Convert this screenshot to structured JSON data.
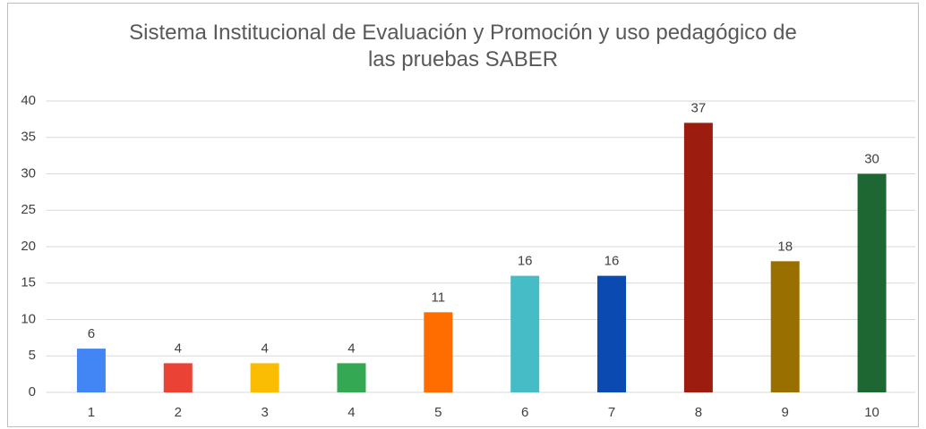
{
  "chart_data": {
    "type": "bar",
    "title": "Sistema Institucional de Evaluación y Promoción y uso pedagógico de las pruebas SABER",
    "categories": [
      "1",
      "2",
      "3",
      "4",
      "5",
      "6",
      "7",
      "8",
      "9",
      "10"
    ],
    "values": [
      6,
      4,
      4,
      4,
      11,
      16,
      16,
      37,
      18,
      30
    ],
    "colors": [
      "#4285f4",
      "#ea4335",
      "#fbbc04",
      "#34a853",
      "#ff6d01",
      "#46bdc6",
      "#0b4ab0",
      "#9c1c10",
      "#997000",
      "#1e6632"
    ],
    "ylim": [
      0,
      40
    ],
    "yticks": [
      0,
      5,
      10,
      15,
      20,
      25,
      30,
      35,
      40
    ],
    "grid": true
  }
}
